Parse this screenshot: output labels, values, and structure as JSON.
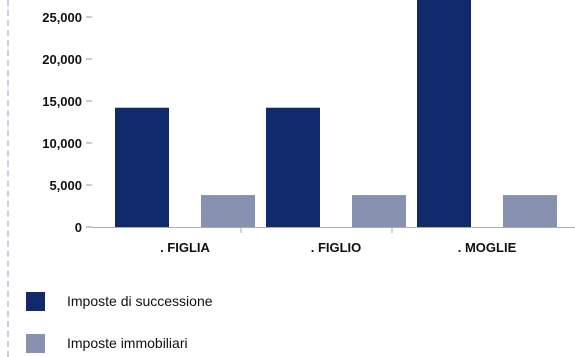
{
  "chart_data": {
    "type": "bar",
    "categories": [
      ". FIGLIA",
      ". FIGLIO",
      ". MOGLIE"
    ],
    "series": [
      {
        "name": "Imposte di successione",
        "values": [
          14200,
          14200,
          27500
        ],
        "color": "#112a6b"
      },
      {
        "name": "Imposte immobiliari",
        "values": [
          3800,
          3800,
          3800
        ],
        "color": "#8791b0"
      }
    ],
    "yticks": [
      "0",
      "5,000",
      "10,000",
      "15,000",
      "20,000",
      "25,000"
    ],
    "ylim": [
      0,
      27000
    ],
    "title": "",
    "xlabel": "",
    "ylabel": "",
    "grid": false,
    "legend_position": "bottom-left"
  }
}
